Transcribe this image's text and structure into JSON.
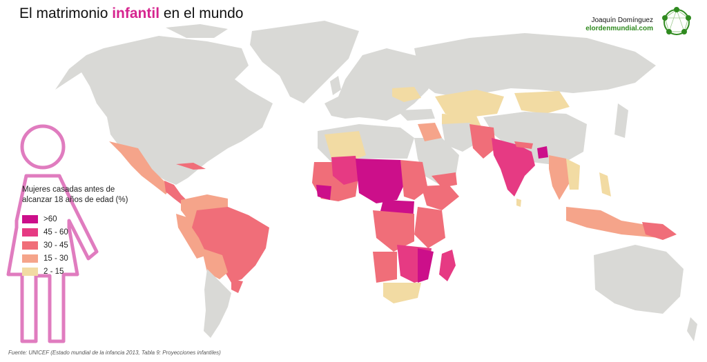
{
  "header": {
    "title_part1": "El matrimonio ",
    "title_accent": "infantil",
    "title_part2": " en el mundo",
    "author": "Joaquín Domínguez",
    "site": "elordenmundial.com"
  },
  "legend": {
    "title": "Mujeres casadas antes de alcanzar 18 años de edad (%)",
    "items": [
      {
        "label": ">60",
        "color": "#cc0f8a"
      },
      {
        "label": "45 - 60",
        "color": "#e63a83"
      },
      {
        "label": "30 - 45",
        "color": "#f06e79"
      },
      {
        "label": "15 - 30",
        "color": "#f5a48a"
      },
      {
        "label": "2 - 15",
        "color": "#f2dba3"
      }
    ]
  },
  "colors": {
    "no_data": "#d9d9d6",
    "accent": "#d6248f",
    "figure_outline": "#e07cbf",
    "site_green": "#2f8a1f"
  },
  "source": "Fuente: UNICEF  (Estado mundial de la infancia 2013, Tabla 9: Proyecciones infantiles)"
}
